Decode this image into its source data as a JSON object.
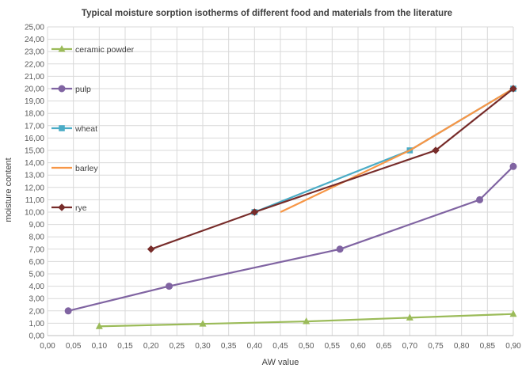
{
  "chart_data": {
    "type": "line",
    "title": "Typical moisture sorption isotherms of different food and materials from the literature",
    "xlabel": "AW value",
    "ylabel": "moisture content",
    "xlim": [
      0,
      0.9
    ],
    "ylim": [
      0,
      25
    ],
    "grid": true,
    "legend_position": "left-inside",
    "x_ticks": [
      "0,00",
      "0,05",
      "0,10",
      "0,15",
      "0,20",
      "0,25",
      "0,30",
      "0,35",
      "0,40",
      "0,45",
      "0,50",
      "0,55",
      "0,60",
      "0,65",
      "0,70",
      "0,75",
      "0,80",
      "0,85",
      "0,90"
    ],
    "y_ticks": [
      "0,00",
      "1,00",
      "2,00",
      "3,00",
      "4,00",
      "5,00",
      "6,00",
      "7,00",
      "8,00",
      "9,00",
      "10,00",
      "11,00",
      "12,00",
      "13,00",
      "14,00",
      "15,00",
      "16,00",
      "17,00",
      "18,00",
      "19,00",
      "20,00",
      "21,00",
      "22,00",
      "23,00",
      "24,00",
      "25,00"
    ],
    "series": [
      {
        "name": "ceramic powder",
        "color": "#9bbb59",
        "marker": "triangle",
        "points": [
          [
            0.1,
            0.75
          ],
          [
            0.3,
            0.95
          ],
          [
            0.5,
            1.15
          ],
          [
            0.7,
            1.45
          ],
          [
            0.9,
            1.75
          ]
        ]
      },
      {
        "name": "pulp",
        "color": "#8064a2",
        "marker": "circle",
        "points": [
          [
            0.04,
            2.0
          ],
          [
            0.235,
            4.0
          ],
          [
            0.565,
            7.0
          ],
          [
            0.835,
            11.0
          ],
          [
            0.9,
            13.7
          ]
        ]
      },
      {
        "name": "wheat",
        "color": "#4bacc6",
        "marker": "square",
        "points": [
          [
            0.4,
            10.0
          ],
          [
            0.7,
            15.0
          ],
          [
            0.9,
            20.0
          ]
        ]
      },
      {
        "name": "barley",
        "color": "#f79646",
        "marker": "none",
        "points": [
          [
            0.45,
            10.0
          ],
          [
            0.7,
            15.0
          ],
          [
            0.9,
            20.0
          ]
        ]
      },
      {
        "name": "rye",
        "color": "#772c2a",
        "marker": "diamond",
        "points": [
          [
            0.2,
            7.0
          ],
          [
            0.4,
            10.0
          ],
          [
            0.75,
            15.0
          ],
          [
            0.9,
            20.0
          ]
        ]
      }
    ]
  }
}
